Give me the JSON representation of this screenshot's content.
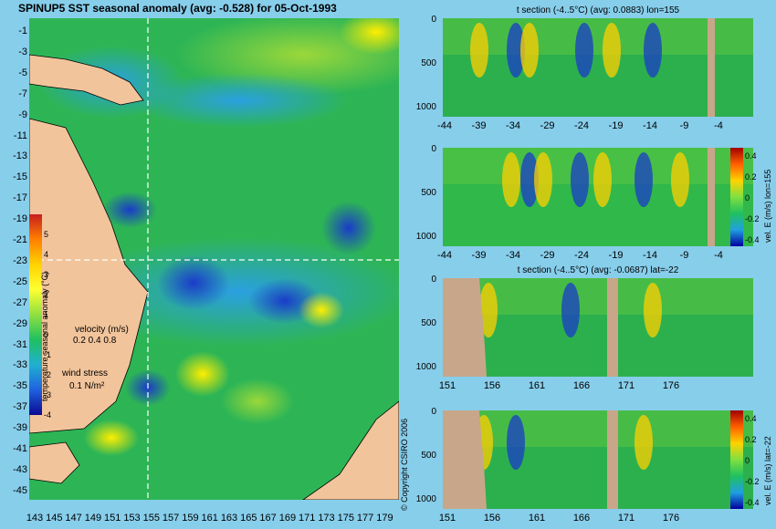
{
  "main": {
    "title": "SPINUP5 SST seasonal anomaly (avg: -0.528) for 05-Oct-1993",
    "y_ticks": [
      "-1",
      "-3",
      "-5",
      "-7",
      "-9",
      "-11",
      "-13",
      "-15",
      "-17",
      "-19",
      "-21",
      "-23",
      "-25",
      "-27",
      "-29",
      "-31",
      "-33",
      "-35",
      "-37",
      "-39",
      "-41",
      "-43",
      "-45"
    ],
    "x_ticks": [
      "143",
      "145",
      "147",
      "149",
      "151",
      "153",
      "155",
      "157",
      "159",
      "161",
      "163",
      "165",
      "167",
      "169",
      "171",
      "173",
      "175",
      "177",
      "179"
    ],
    "colorbar_label": "temperature seasonal anomaly (°C)",
    "colorbar_ticks": [
      "5",
      "4",
      "3",
      "2",
      "1",
      "0",
      "-1",
      "-2",
      "-3",
      "-4"
    ],
    "velocity_legend": {
      "title": "velocity (m/s)",
      "values": "0.2 0.4 0.8"
    },
    "wind_legend": {
      "title": "wind stress",
      "value": "0.1 N/m²"
    },
    "copyright": "© Copyright CSIRO 2006"
  },
  "panels": [
    {
      "title": "t section (-4..5°C) (avg: 0.0883) lon=155",
      "x_ticks": [
        "-44",
        "-39",
        "-34",
        "-29",
        "-24",
        "-19",
        "-14",
        "-9",
        "-4"
      ],
      "y_ticks": [
        "0",
        "500",
        "1000"
      ]
    },
    {
      "title": "",
      "x_ticks": [
        "-44",
        "-39",
        "-34",
        "-29",
        "-24",
        "-19",
        "-14",
        "-9",
        "-4"
      ],
      "y_ticks": [
        "0",
        "500",
        "1000"
      ],
      "colorbar_label": "vel. E (m/s) lon=155",
      "colorbar_ticks": [
        "0.4",
        "0.2",
        "0",
        "-0.2",
        "-0.4"
      ]
    },
    {
      "title": "t section (-4..5°C) (avg: -0.0687) lat=-22",
      "x_ticks": [
        "151",
        "156",
        "161",
        "166",
        "171",
        "176"
      ],
      "y_ticks": [
        "0",
        "500",
        "1000"
      ]
    },
    {
      "title": "",
      "x_ticks": [
        "151",
        "156",
        "161",
        "166",
        "171",
        "176"
      ],
      "y_ticks": [
        "0",
        "500",
        "1000"
      ],
      "colorbar_label": "vel. E (m/s) lat=-22",
      "colorbar_ticks": [
        "0.4",
        "0.2",
        "0",
        "-0.2",
        "-0.4"
      ]
    }
  ],
  "colors": {
    "land": "#f2c49b",
    "ocean_base": "#22b14c",
    "background": "#87ceeb",
    "section_land": "#c8a68a"
  }
}
